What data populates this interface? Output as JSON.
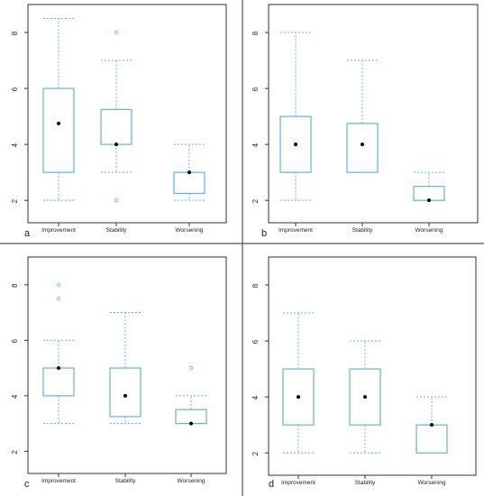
{
  "colors": {
    "box": "#5bb8d6",
    "outlier": "#6cc8a8",
    "median": "#000000",
    "frame": "#333333",
    "divider": "#555555"
  },
  "chart_data": [
    {
      "type": "boxplot",
      "panel_label": "a",
      "categories": [
        "Improvement",
        "Stability",
        "Worsening"
      ],
      "ylim": [
        1.2,
        9.0
      ],
      "yticks": [
        2,
        4,
        6,
        8
      ],
      "boxes": [
        {
          "whisker_low": 2,
          "q1": 3,
          "median": 4.75,
          "q3": 6,
          "whisker_high": 8.5,
          "outliers": []
        },
        {
          "whisker_low": 3,
          "q1": 4,
          "median": 4,
          "q3": 5.25,
          "whisker_high": 7,
          "outliers": [
            2,
            8
          ]
        },
        {
          "whisker_low": 2,
          "q1": 2.25,
          "median": 3,
          "q3": 3,
          "whisker_high": 4,
          "outliers": []
        }
      ]
    },
    {
      "type": "boxplot",
      "panel_label": "b",
      "categories": [
        "Improvement",
        "Stability",
        "Worsening"
      ],
      "ylim": [
        1.2,
        9.0
      ],
      "yticks": [
        2,
        4,
        6,
        8
      ],
      "boxes": [
        {
          "whisker_low": 2,
          "q1": 3,
          "median": 4,
          "q3": 5,
          "whisker_high": 8,
          "outliers": []
        },
        {
          "whisker_low": 3,
          "q1": 3,
          "median": 4,
          "q3": 4.75,
          "whisker_high": 7,
          "outliers": []
        },
        {
          "whisker_low": 2,
          "q1": 2,
          "median": 2,
          "q3": 2.5,
          "whisker_high": 3,
          "outliers": []
        }
      ]
    },
    {
      "type": "boxplot",
      "panel_label": "c",
      "categories": [
        "Improvement",
        "Stability",
        "Worsening"
      ],
      "ylim": [
        1.2,
        9.0
      ],
      "yticks": [
        2,
        4,
        6,
        8
      ],
      "boxes": [
        {
          "whisker_low": 3,
          "q1": 4,
          "median": 5,
          "q3": 5,
          "whisker_high": 6,
          "outliers": [
            7.5,
            8
          ]
        },
        {
          "whisker_low": 3,
          "q1": 3.25,
          "median": 4,
          "q3": 5,
          "whisker_high": 7,
          "outliers": []
        },
        {
          "whisker_low": 3,
          "q1": 3,
          "median": 3,
          "q3": 3.5,
          "whisker_high": 4,
          "outliers": [
            5
          ]
        }
      ]
    },
    {
      "type": "boxplot",
      "panel_label": "d",
      "categories": [
        "Improvement",
        "Stability",
        "Worsening"
      ],
      "ylim": [
        1.2,
        9.0
      ],
      "yticks": [
        2,
        4,
        6,
        8
      ],
      "boxes": [
        {
          "whisker_low": 2,
          "q1": 3,
          "median": 4,
          "q3": 5,
          "whisker_high": 7,
          "outliers": []
        },
        {
          "whisker_low": 2,
          "q1": 3,
          "median": 4,
          "q3": 5,
          "whisker_high": 6,
          "outliers": []
        },
        {
          "whisker_low": 2,
          "q1": 2,
          "median": 3,
          "q3": 3,
          "whisker_high": 4,
          "outliers": []
        }
      ]
    }
  ]
}
